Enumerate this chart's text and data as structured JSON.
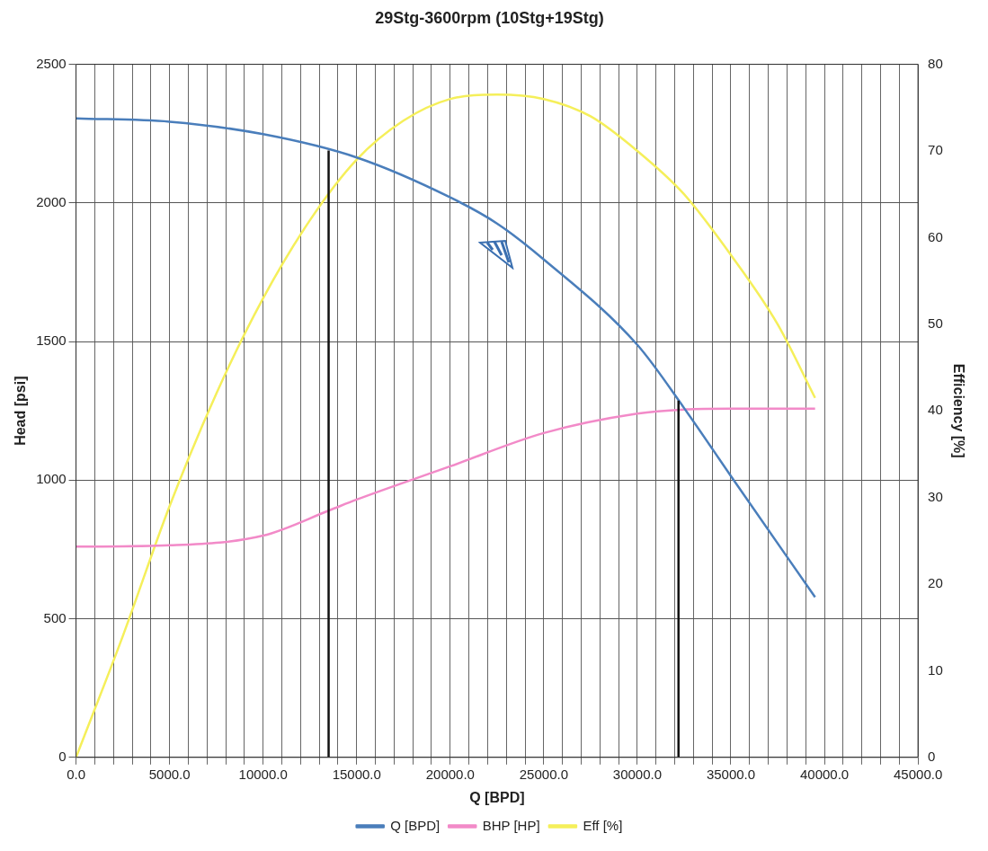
{
  "chart_data": {
    "type": "line",
    "title": "29Stg-3600rpm (10Stg+19Stg)",
    "xlabel": "Q [BPD]",
    "ylabel": "Head [psi]",
    "y2label": "Efficiency [%]",
    "series": [
      {
        "name": "Q [BPD]",
        "color": "#4a7ebb",
        "x": [
          0,
          5000,
          10000,
          15000,
          20000,
          22500,
          25000,
          30000,
          32500,
          35000,
          39500
        ],
        "values": [
          2305,
          2293,
          2248,
          2164,
          2020,
          1926,
          1796,
          1488,
          1260,
          1015,
          578
        ]
      },
      {
        "name": "BHP [HP]",
        "color": "#f28ac8",
        "x": [
          0,
          5000,
          10000,
          13500,
          15000,
          20000,
          25000,
          30000,
          32500,
          35000,
          39500
        ],
        "values": [
          760,
          765,
          800,
          890,
          930,
          1050,
          1170,
          1240,
          1255,
          1258,
          1258
        ]
      },
      {
        "name": "Eff [%]",
        "color": "#f5ef5a",
        "axis": "y2",
        "x": [
          0,
          2500,
          5000,
          7500,
          10000,
          12500,
          15000,
          17500,
          20000,
          22500,
          25000,
          27500,
          30000,
          32500,
          35000,
          37500,
          39500
        ],
        "values": [
          0,
          14,
          29,
          42,
          53,
          62,
          69,
          73.5,
          76,
          76.5,
          76,
          74,
          70,
          65,
          58,
          50,
          41.5
        ]
      }
    ],
    "xlim": [
      0,
      45000
    ],
    "xticks": [
      {
        "value": 0,
        "label": "0.0"
      },
      {
        "value": 1000,
        "label": null
      },
      {
        "value": 2000,
        "label": null
      },
      {
        "value": 3000,
        "label": null
      },
      {
        "value": 4000,
        "label": null
      },
      {
        "value": 5000,
        "label": "5000.0"
      },
      {
        "value": 6000,
        "label": null
      },
      {
        "value": 7000,
        "label": null
      },
      {
        "value": 8000,
        "label": null
      },
      {
        "value": 9000,
        "label": null
      },
      {
        "value": 10000,
        "label": "10000.0"
      },
      {
        "value": 11000,
        "label": null
      },
      {
        "value": 12000,
        "label": null
      },
      {
        "value": 13000,
        "label": null
      },
      {
        "value": 14000,
        "label": null
      },
      {
        "value": 15000,
        "label": "15000.0"
      },
      {
        "value": 16000,
        "label": null
      },
      {
        "value": 17000,
        "label": null
      },
      {
        "value": 18000,
        "label": null
      },
      {
        "value": 19000,
        "label": null
      },
      {
        "value": 20000,
        "label": "20000.0"
      },
      {
        "value": 21000,
        "label": null
      },
      {
        "value": 22000,
        "label": null
      },
      {
        "value": 23000,
        "label": null
      },
      {
        "value": 24000,
        "label": null
      },
      {
        "value": 25000,
        "label": "25000.0"
      },
      {
        "value": 26000,
        "label": null
      },
      {
        "value": 27000,
        "label": null
      },
      {
        "value": 28000,
        "label": null
      },
      {
        "value": 29000,
        "label": null
      },
      {
        "value": 30000,
        "label": "30000.0"
      },
      {
        "value": 31000,
        "label": null
      },
      {
        "value": 32000,
        "label": null
      },
      {
        "value": 33000,
        "label": null
      },
      {
        "value": 34000,
        "label": null
      },
      {
        "value": 35000,
        "label": "35000.0"
      },
      {
        "value": 36000,
        "label": null
      },
      {
        "value": 37000,
        "label": null
      },
      {
        "value": 38000,
        "label": null
      },
      {
        "value": 39000,
        "label": null
      },
      {
        "value": 40000,
        "label": "40000.0"
      },
      {
        "value": 41000,
        "label": null
      },
      {
        "value": 42000,
        "label": null
      },
      {
        "value": 43000,
        "label": null
      },
      {
        "value": 44000,
        "label": null
      },
      {
        "value": 45000,
        "label": "45000.0"
      }
    ],
    "ylim": [
      0,
      2500
    ],
    "yticks": [
      0,
      500,
      1000,
      1500,
      2000,
      2500
    ],
    "y2lim": [
      0,
      80
    ],
    "y2ticks": [
      0,
      10,
      20,
      30,
      40,
      50,
      60,
      70,
      80
    ],
    "ref_lines": [
      {
        "axis": "x",
        "value": 13500,
        "color": "#111111"
      },
      {
        "axis": "x",
        "value": 32200,
        "color": "#111111"
      }
    ],
    "grid": true,
    "legend": "bottom",
    "marker": "none",
    "line_style": "solid"
  }
}
